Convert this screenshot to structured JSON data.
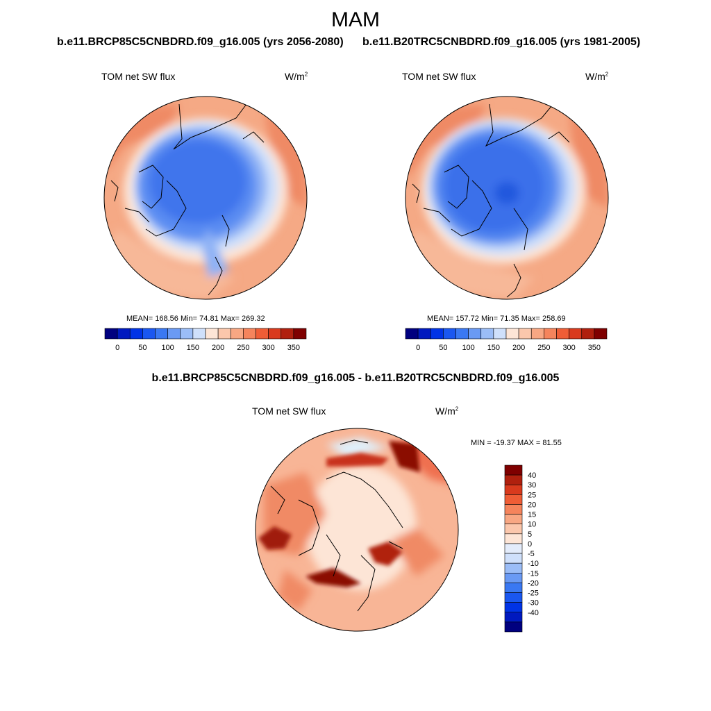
{
  "season": "MAM",
  "panels": [
    {
      "run_title": "b.e11.BRCP85C5CNBDRD.f09_g16.005 (yrs 2056-2080)",
      "variable": "TOM net SW flux",
      "units_base": "W/m",
      "units_exp": "2",
      "stats": "MEAN= 168.56  Min=  74.81  Max= 269.32"
    },
    {
      "run_title": "b.e11.B20TRC5CNBDRD.f09_g16.005 (yrs 1981-2005)",
      "variable": "TOM net SW flux",
      "units_base": "W/m",
      "units_exp": "2",
      "stats": "MEAN= 157.72  Min=  71.35  Max= 258.69"
    }
  ],
  "abs_colorbar": {
    "colors": [
      "#00007f",
      "#0019bf",
      "#0033e6",
      "#1a57f0",
      "#3a78f2",
      "#6a9af4",
      "#9bbdf7",
      "#cfe0fb",
      "#fde5d6",
      "#fbc7ac",
      "#f8a783",
      "#f5845c",
      "#ef5d36",
      "#d93a1d",
      "#b0200e",
      "#7f0000"
    ],
    "labels": [
      "0",
      "50",
      "100",
      "150",
      "200",
      "250",
      "300",
      "350"
    ]
  },
  "diff": {
    "title": "b.e11.BRCP85C5CNBDRD.f09_g16.005 - b.e11.B20TRC5CNBDRD.f09_g16.005",
    "variable": "TOM net SW flux",
    "units_base": "W/m",
    "units_exp": "2",
    "minmax": "MIN = -19.37 MAX =  81.55",
    "colorbar": {
      "colors_top_to_bottom": [
        "#7f0000",
        "#b0200e",
        "#d93a1d",
        "#ef5d36",
        "#f5845c",
        "#f8a783",
        "#fbc7ac",
        "#fde5d6",
        "#e3ecfb",
        "#cfe0fb",
        "#9bbdf7",
        "#6a9af4",
        "#3a78f2",
        "#1a57f0",
        "#0033e6",
        "#0019bf",
        "#00007f"
      ],
      "labels": [
        "40",
        "30",
        "25",
        "20",
        "15",
        "10",
        "5",
        "0",
        "-5",
        "-10",
        "-15",
        "-20",
        "-25",
        "-30",
        "-40"
      ]
    }
  },
  "colors": {
    "blue_deep": "#2f63e6",
    "blue_mid": "#4a7ff0",
    "blue_light": "#8fb2f5",
    "blue_pale": "#cfe0fb",
    "peach": "#fde5d6",
    "salmon": "#f5a985",
    "orange": "#ef7a55",
    "red": "#d93a1d",
    "darkred": "#8b0f05"
  }
}
